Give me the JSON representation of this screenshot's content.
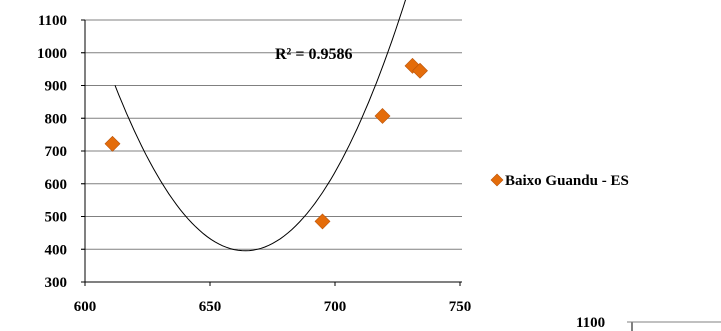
{
  "chart_data": {
    "type": "scatter",
    "series": [
      {
        "name": "Baixo Guandu - ES",
        "color": "#e46c0a",
        "marker": "diamond",
        "x": [
          611,
          695,
          719,
          731,
          734
        ],
        "y": [
          722,
          485,
          807,
          960,
          945
        ]
      }
    ],
    "trendline": {
      "type": "polynomial-2",
      "a": 0.18624,
      "b": -247.36,
      "c": 82530
    },
    "annotation": "R² = 0.9586",
    "xlim": [
      600,
      750
    ],
    "ylim": [
      300,
      1100
    ],
    "xticks": [
      "600",
      "650",
      "700",
      "750"
    ],
    "yticks": [
      "1100",
      "1000",
      "900",
      "800",
      "700",
      "600",
      "500",
      "400",
      "300"
    ],
    "grid": {
      "horizontal": true,
      "vertical": false
    },
    "legend": {
      "placement": "right",
      "label": "Baixo Guandu - ES"
    }
  },
  "partial_chart": {
    "tick_label": "1100"
  }
}
